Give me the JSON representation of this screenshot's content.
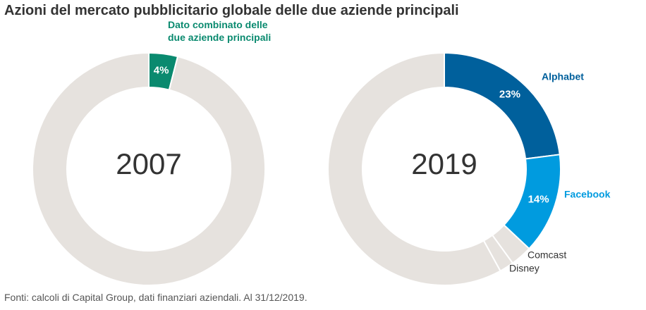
{
  "title": "Azioni del mercato pubblicitario globale delle due aziende principali",
  "footnote": "Fonti: calcoli di Capital Group, dati finanziari aziendali. Al 31/12/2019.",
  "chart_data": [
    {
      "type": "donut",
      "center_label": "2007",
      "categories": [
        "Dato combinato delle due aziende principali",
        null
      ],
      "values": [
        4,
        96
      ],
      "value_labels": [
        "4%",
        null
      ],
      "colors": [
        "#0a8a6f",
        "#e6e2de"
      ]
    },
    {
      "type": "donut",
      "center_label": "2019",
      "categories": [
        "Alphabet",
        "Facebook",
        "Comcast",
        "Disney",
        null
      ],
      "values": [
        23,
        14,
        3,
        2,
        58
      ],
      "value_labels": [
        "23%",
        "14%",
        null,
        null,
        null
      ],
      "colors": [
        "#00609c",
        "#009bdf",
        "#e6e2de",
        "#e6e2de",
        "#e6e2de"
      ]
    }
  ]
}
